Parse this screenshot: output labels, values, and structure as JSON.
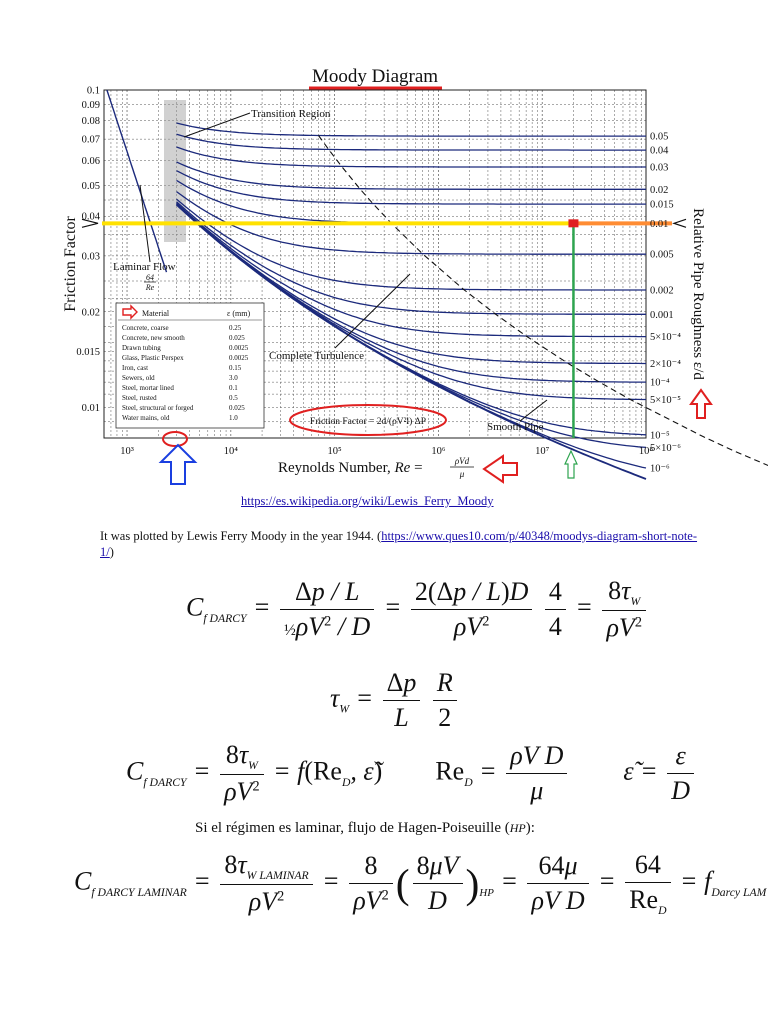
{
  "chart_data": {
    "type": "line",
    "title": "Moody Diagram",
    "xlabel": "Reynolds Number, Re = ρVd/μ",
    "ylabel": "Friction Factor",
    "y2label": "Relative Pipe Roughness ε/d",
    "xscale": "log",
    "yscale": "log",
    "xlim": [
      600,
      100000000
    ],
    "ylim": [
      0.008,
      0.1
    ],
    "x_ticks": [
      "10³",
      "10⁴",
      "10⁵",
      "10⁶",
      "10⁷",
      "10⁸"
    ],
    "y_ticks": [
      {
        "v": 0.1,
        "label": "0.1"
      },
      {
        "v": 0.09,
        "label": "0.09"
      },
      {
        "v": 0.08,
        "label": "0.08"
      },
      {
        "v": 0.07,
        "label": "0.07"
      },
      {
        "v": 0.06,
        "label": "0.06"
      },
      {
        "v": 0.05,
        "label": "0.05"
      },
      {
        "v": 0.04,
        "label": "0.04"
      },
      {
        "v": 0.03,
        "label": "0.03"
      },
      {
        "v": 0.02,
        "label": "0.02"
      },
      {
        "v": 0.015,
        "label": "0.015"
      },
      {
        "v": 0.01,
        "label": "0.01"
      }
    ],
    "roughness_labels": [
      {
        "value": 0.05,
        "label": "0.05"
      },
      {
        "value": 0.04,
        "label": "0.04"
      },
      {
        "value": 0.03,
        "label": "0.03"
      },
      {
        "value": 0.02,
        "label": "0.02"
      },
      {
        "value": 0.015,
        "label": "0.015"
      },
      {
        "value": 0.01,
        "label": "0.01"
      },
      {
        "value": 0.005,
        "label": "0.005"
      },
      {
        "value": 0.002,
        "label": "0.002"
      },
      {
        "value": 0.001,
        "label": "0.001"
      },
      {
        "value": 0.0005,
        "label": "5×10⁻⁴"
      },
      {
        "value": 0.0002,
        "label": "2×10⁻⁴"
      },
      {
        "value": 0.0001,
        "label": "10⁻⁴"
      },
      {
        "value": 5e-05,
        "label": "5×10⁻⁵"
      },
      {
        "value": 1e-05,
        "label": "10⁻⁵"
      },
      {
        "value": 5e-06,
        "label": "5×10⁻⁶"
      },
      {
        "value": 1e-06,
        "label": "10⁻⁶"
      }
    ],
    "annotations": {
      "transition": "Transition Region",
      "laminar": "Laminar Flow",
      "laminar_frac_num": "64",
      "laminar_frac_den": "Re",
      "complete": "Complete Turbulence",
      "smooth": "Smooth Pipe",
      "friction_formula": "Friction Factor = 2d/(ρV²l) ΔP"
    },
    "highlight": {
      "friction_factor": 0.038,
      "reynolds": 20000000
    },
    "materials_table": {
      "header": [
        "Material",
        "ε (mm)"
      ],
      "rows": [
        [
          "Concrete, coarse",
          "0.25"
        ],
        [
          "Concrete, new smooth",
          "0.025"
        ],
        [
          "Drawn tubing",
          "0.0025"
        ],
        [
          "Glass, Plastic Perspex",
          "0.0025"
        ],
        [
          "Iron, cast",
          "0.15"
        ],
        [
          "Sewers, old",
          "3.0"
        ],
        [
          "Steel, mortar lined",
          "0.1"
        ],
        [
          "Steel, rusted",
          "0.5"
        ],
        [
          "Steel, structural or forged",
          "0.025"
        ],
        [
          "Water mains, old",
          "1.0"
        ]
      ]
    }
  },
  "links": {
    "wiki": "https://es.wikipedia.org/wiki/Lewis_Ferry_Moody",
    "ques10": "https://www.ques10.com/p/40348/moodys-diagram-short-note-1/"
  },
  "text": {
    "para_before": "It was plotted by Lewis Ferry Moody in the year 1944. (",
    "para_after": ")",
    "hp_before": "Si el régimen es laminar, flujo de Hagen-Poiseuille (",
    "hp_abbr": "HP",
    "hp_after": "):"
  }
}
